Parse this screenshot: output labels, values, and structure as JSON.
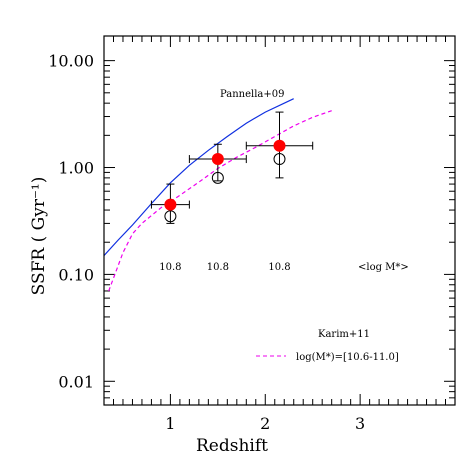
{
  "chart_data": {
    "type": "scatter",
    "title": "",
    "xlabel": "Redshift",
    "ylabel": "SSFR ( Gyr⁻¹)",
    "xlim": [
      0.3,
      4.0
    ],
    "ylim": [
      0.006,
      17
    ],
    "yscale": "log",
    "x_ticks": [
      1,
      2,
      3
    ],
    "x_tick_labels": [
      "1",
      "2",
      "3"
    ],
    "y_ticks": [
      0.01,
      0.1,
      1,
      10
    ],
    "y_tick_labels": [
      "0.01",
      "0.10",
      "1.00",
      "10.00"
    ],
    "grid": false,
    "colors": {
      "pannella_line": "#1030e0",
      "karim_line": "#ee00ee",
      "filled_points": "#ff0000",
      "open_points": "#000000"
    },
    "series": [
      {
        "name": "Pannella+09",
        "kind": "line",
        "style": "solid",
        "x": [
          0.3,
          0.45,
          0.6,
          0.8,
          1.0,
          1.2,
          1.4,
          1.6,
          1.8,
          2.0,
          2.2,
          2.3
        ],
        "y": [
          0.15,
          0.21,
          0.29,
          0.46,
          0.72,
          1.05,
          1.45,
          1.95,
          2.6,
          3.3,
          4.0,
          4.4
        ]
      },
      {
        "name": "log(M*)=[10.6-11.0]",
        "kind": "line",
        "style": "dashed",
        "x": [
          0.35,
          0.5,
          0.6,
          0.7,
          0.9,
          1.1,
          1.3,
          1.5,
          1.7,
          1.9,
          2.1,
          2.3,
          2.5,
          2.7
        ],
        "y": [
          0.07,
          0.16,
          0.24,
          0.3,
          0.42,
          0.55,
          0.73,
          0.98,
          1.25,
          1.55,
          1.95,
          2.45,
          2.95,
          3.4
        ]
      },
      {
        "kind": "points",
        "marker": "filled-circle",
        "x": [
          1.0,
          1.5,
          2.15
        ],
        "y": [
          0.45,
          1.2,
          1.6
        ],
        "xerr": [
          0.2,
          0.3,
          0.35
        ],
        "yerr_low": [
          0.3,
          0.75,
          0.8
        ],
        "yerr_high": [
          0.7,
          1.65,
          3.3
        ]
      },
      {
        "kind": "points",
        "marker": "open-circle",
        "x": [
          1.0,
          1.5,
          2.15
        ],
        "y": [
          0.35,
          0.8,
          1.2
        ]
      }
    ],
    "annotations": {
      "pannella": "Pannella+09",
      "karim": "Karim+11",
      "legend_entry": "log(M*)=[10.6-11.0]",
      "mass_header": "<log M*>",
      "mass_values": [
        "10.8",
        "10.8",
        "10.8"
      ]
    }
  }
}
